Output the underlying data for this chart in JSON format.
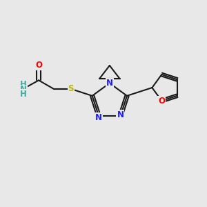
{
  "background_color": "#e8e8e8",
  "bond_color": "#1a1a1a",
  "bond_width": 1.5,
  "colors": {
    "C": "#1a1a1a",
    "N": "#1e1eff",
    "O": "#ff0000",
    "S": "#b8b800",
    "NH2": "#3dada0"
  },
  "font_size_atom": 8.5,
  "canvas_xlim": [
    0,
    10
  ],
  "canvas_ylim": [
    0,
    10
  ]
}
